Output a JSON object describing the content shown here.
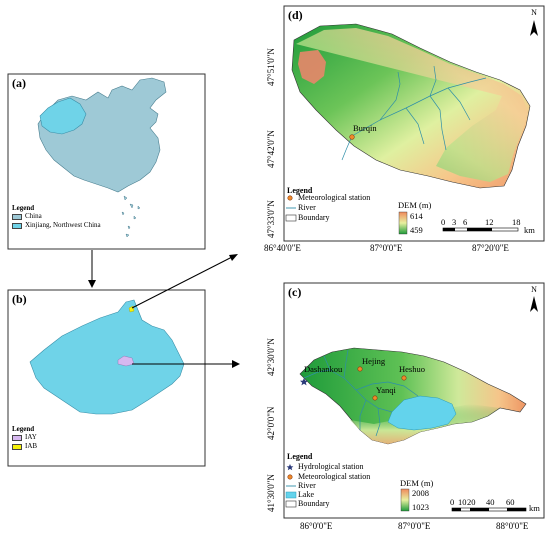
{
  "panel_a": {
    "label": "(a)",
    "legend_title": "Legend",
    "legend_items": [
      {
        "label": "China",
        "color": "#9ec9d6"
      },
      {
        "label": "Xinjiang, Northwest China",
        "color": "#6fd3e8"
      }
    ]
  },
  "panel_b": {
    "label": "(b)",
    "legend_title": "Legend",
    "legend_items": [
      {
        "label": "IAY",
        "color": "#d7b8f0"
      },
      {
        "label": "IAB",
        "color": "#f5f20a"
      }
    ]
  },
  "panel_d": {
    "label": "(d)",
    "north": "N",
    "lat_ticks": [
      "47°51'0\"N",
      "47°42'0\"N",
      "47°33'0\"N"
    ],
    "lon_ticks": [
      "86°40'0\"E",
      "87°0'0\"E",
      "87°20'0\"E"
    ],
    "place": "Burqin",
    "legend_title": "Legend",
    "legend_items": [
      "Meteorological station",
      "River",
      "Boundary"
    ],
    "dem_title": "DEM (m)",
    "dem_max": "614",
    "dem_min": "459",
    "scale_labels": [
      "0",
      "3",
      "6",
      "12",
      "18"
    ],
    "scale_unit": "km"
  },
  "panel_c": {
    "label": "(c)",
    "north": "N",
    "lat_ticks": [
      "42°30'0\"N",
      "42°0'0\"N",
      "41°30'0\"N"
    ],
    "lon_ticks": [
      "86°0'0\"E",
      "87°0'0\"E",
      "88°0'0\"E"
    ],
    "places": [
      "Dashankou",
      "Hejing",
      "Heshuo",
      "Yanqi"
    ],
    "legend_title": "Legend",
    "legend_items": [
      "Hydrological station",
      "Meteorological station",
      "River",
      "Lake",
      "Boundary"
    ],
    "dem_title": "DEM (m)",
    "dem_max": "2008",
    "dem_min": "1023",
    "scale_labels": [
      "0",
      "10",
      "20",
      "40",
      "60"
    ],
    "scale_unit": "km"
  }
}
